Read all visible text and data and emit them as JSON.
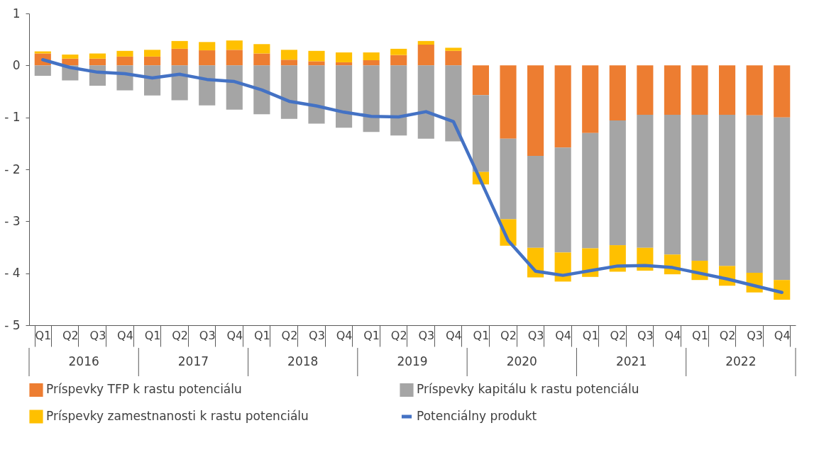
{
  "chart_data": {
    "type": "bar",
    "stacked": true,
    "legend": "bottom",
    "grid": false,
    "categories": [
      "Q1",
      "Q2",
      "Q3",
      "Q4",
      "Q1",
      "Q2",
      "Q3",
      "Q4",
      "Q1",
      "Q2",
      "Q3",
      "Q4",
      "Q1",
      "Q2",
      "Q3",
      "Q4",
      "Q1",
      "Q2",
      "Q3",
      "Q4",
      "Q1",
      "Q2",
      "Q3",
      "Q4",
      "Q1",
      "Q2",
      "Q3",
      "Q4"
    ],
    "annotations": [
      "2016",
      "2017",
      "2018",
      "2019",
      "2020",
      "2021",
      "2022"
    ],
    "ylim": [
      -5,
      1
    ],
    "yticks": [
      1,
      0,
      {
        "value": -1,
        "label": "- 1"
      },
      {
        "value": -2,
        "label": "- 2"
      },
      {
        "value": -3,
        "label": "- 3"
      },
      {
        "value": -4,
        "label": "- 4"
      },
      {
        "value": -5,
        "label": "- 5"
      }
    ],
    "series": [
      {
        "name": "Príspevky TFP k rastu potenciálu",
        "color": "#ed7d31",
        "values": [
          0.23,
          0.13,
          0.13,
          0.17,
          0.17,
          0.32,
          0.29,
          0.3,
          0.23,
          0.11,
          0.08,
          0.06,
          0.1,
          0.2,
          0.4,
          0.28,
          -0.57,
          -1.41,
          -1.74,
          -1.58,
          -1.3,
          -1.06,
          -0.95,
          -0.95,
          -0.95,
          -0.95,
          -0.96,
          -1.0
        ]
      },
      {
        "name": "Príspevky kapitálu k rastu potenciálu",
        "color": "#a5a5a5",
        "values": [
          -0.2,
          -0.29,
          -0.39,
          -0.48,
          -0.58,
          -0.67,
          -0.77,
          -0.85,
          -0.94,
          -1.03,
          -1.12,
          -1.2,
          -1.28,
          -1.35,
          -1.41,
          -1.46,
          -1.48,
          -1.55,
          -1.77,
          -2.02,
          -2.22,
          -2.4,
          -2.56,
          -2.69,
          -2.81,
          -2.91,
          -3.03,
          -3.13
        ]
      },
      {
        "name": "Príspevky zamestnanosti k rastu potenciálu",
        "color": "#ffc000",
        "values": [
          0.04,
          0.08,
          0.1,
          0.11,
          0.13,
          0.15,
          0.16,
          0.18,
          0.18,
          0.19,
          0.2,
          0.19,
          0.15,
          0.12,
          0.07,
          0.06,
          -0.24,
          -0.51,
          -0.57,
          -0.56,
          -0.55,
          -0.51,
          -0.44,
          -0.38,
          -0.37,
          -0.38,
          -0.38,
          -0.38
        ]
      },
      {
        "name": "Potenciálny produkt",
        "type": "line",
        "color": "#4472c4",
        "values": [
          0.11,
          -0.04,
          -0.13,
          -0.16,
          -0.24,
          -0.17,
          -0.27,
          -0.31,
          -0.47,
          -0.69,
          -0.78,
          -0.9,
          -0.98,
          -0.99,
          -0.89,
          -1.08,
          -2.22,
          -3.37,
          -3.96,
          -4.04,
          -3.95,
          -3.86,
          -3.85,
          -3.89,
          -4.0,
          -4.11,
          -4.24,
          -4.37
        ]
      }
    ]
  }
}
